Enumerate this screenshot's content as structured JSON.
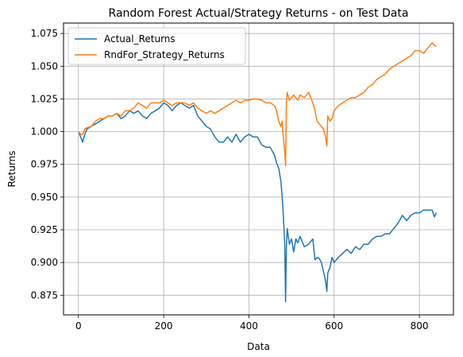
{
  "chart_data": {
    "type": "line",
    "title": "Random Forest Actual/Strategy Returns - on Test Data",
    "xlabel": "Data",
    "ylabel": "Returns",
    "xlim": [
      -35,
      880
    ],
    "ylim": [
      0.86,
      1.083
    ],
    "x_ticks": [
      0,
      200,
      400,
      600,
      800
    ],
    "y_ticks": [
      0.875,
      0.9,
      0.925,
      0.95,
      0.975,
      1.0,
      1.025,
      1.05,
      1.075
    ],
    "x_tick_labels": [
      "0",
      "200",
      "400",
      "600",
      "800"
    ],
    "y_tick_labels": [
      "0.875",
      "0.900",
      "0.925",
      "0.950",
      "0.975",
      "1.000",
      "1.025",
      "1.050",
      "1.075"
    ],
    "grid": true,
    "legend_position": "top-left",
    "series": [
      {
        "name": "Actual_Returns",
        "color": "#1f77b4",
        "x": [
          0,
          5,
          10,
          15,
          20,
          30,
          40,
          50,
          60,
          70,
          80,
          90,
          100,
          110,
          120,
          130,
          140,
          150,
          160,
          170,
          180,
          190,
          200,
          210,
          220,
          230,
          240,
          250,
          260,
          270,
          280,
          290,
          300,
          310,
          320,
          330,
          340,
          350,
          360,
          370,
          380,
          390,
          400,
          410,
          420,
          430,
          440,
          450,
          460,
          465,
          470,
          475,
          478,
          480,
          482,
          484,
          486,
          488,
          490,
          495,
          500,
          505,
          510,
          515,
          520,
          530,
          540,
          550,
          555,
          560,
          565,
          570,
          575,
          580,
          583,
          585,
          590,
          595,
          600,
          610,
          620,
          630,
          640,
          650,
          660,
          670,
          680,
          690,
          700,
          710,
          720,
          730,
          740,
          750,
          760,
          770,
          780,
          790,
          800,
          810,
          820,
          830,
          835,
          840
        ],
        "values": [
          1.0,
          0.996,
          0.992,
          0.998,
          1.002,
          1.004,
          1.006,
          1.008,
          1.01,
          1.012,
          1.012,
          1.014,
          1.01,
          1.012,
          1.016,
          1.014,
          1.016,
          1.012,
          1.01,
          1.014,
          1.016,
          1.018,
          1.022,
          1.02,
          1.016,
          1.02,
          1.022,
          1.02,
          1.018,
          1.02,
          1.012,
          1.008,
          1.004,
          1.002,
          0.996,
          0.992,
          0.992,
          0.996,
          0.992,
          0.998,
          0.992,
          0.996,
          0.998,
          0.996,
          0.996,
          0.99,
          0.988,
          0.988,
          0.982,
          0.976,
          0.972,
          0.962,
          0.95,
          0.94,
          0.928,
          0.915,
          0.87,
          0.912,
          0.926,
          0.914,
          0.918,
          0.908,
          0.918,
          0.915,
          0.92,
          0.912,
          0.914,
          0.918,
          0.902,
          0.904,
          0.903,
          0.9,
          0.893,
          0.886,
          0.878,
          0.892,
          0.896,
          0.904,
          0.9,
          0.904,
          0.907,
          0.91,
          0.907,
          0.912,
          0.91,
          0.914,
          0.914,
          0.918,
          0.92,
          0.92,
          0.922,
          0.922,
          0.926,
          0.93,
          0.936,
          0.932,
          0.936,
          0.938,
          0.938,
          0.94,
          0.94,
          0.94,
          0.935,
          0.938
        ]
      },
      {
        "name": "RndFor_Strategy_Returns",
        "color": "#ff7f0e",
        "x": [
          0,
          5,
          10,
          15,
          20,
          30,
          40,
          50,
          60,
          70,
          80,
          90,
          100,
          110,
          120,
          130,
          140,
          150,
          160,
          170,
          180,
          190,
          200,
          210,
          220,
          230,
          240,
          250,
          260,
          270,
          280,
          290,
          300,
          310,
          320,
          330,
          340,
          350,
          360,
          370,
          380,
          390,
          400,
          410,
          420,
          430,
          440,
          450,
          460,
          465,
          470,
          475,
          478,
          480,
          482,
          484,
          486,
          488,
          490,
          495,
          500,
          505,
          510,
          515,
          520,
          530,
          540,
          550,
          555,
          560,
          565,
          570,
          575,
          580,
          583,
          585,
          590,
          595,
          600,
          610,
          620,
          630,
          640,
          650,
          660,
          670,
          680,
          690,
          700,
          710,
          720,
          730,
          740,
          750,
          760,
          770,
          780,
          790,
          800,
          810,
          820,
          830,
          835,
          840
        ],
        "values": [
          1.0,
          0.998,
          0.998,
          1.002,
          1.003,
          1.004,
          1.008,
          1.01,
          1.01,
          1.012,
          1.012,
          1.014,
          1.012,
          1.016,
          1.016,
          1.018,
          1.022,
          1.02,
          1.018,
          1.022,
          1.022,
          1.022,
          1.024,
          1.022,
          1.02,
          1.022,
          1.022,
          1.022,
          1.02,
          1.022,
          1.018,
          1.016,
          1.014,
          1.016,
          1.014,
          1.016,
          1.018,
          1.02,
          1.022,
          1.024,
          1.022,
          1.024,
          1.024,
          1.025,
          1.025,
          1.024,
          1.022,
          1.022,
          1.02,
          1.016,
          1.008,
          1.004,
          1.008,
          0.998,
          0.992,
          0.985,
          0.974,
          1.022,
          1.03,
          1.024,
          1.026,
          1.028,
          1.026,
          1.024,
          1.028,
          1.026,
          1.03,
          1.022,
          1.016,
          1.008,
          1.006,
          1.004,
          1.002,
          0.996,
          0.989,
          1.012,
          1.008,
          1.01,
          1.016,
          1.02,
          1.022,
          1.024,
          1.026,
          1.026,
          1.028,
          1.03,
          1.034,
          1.036,
          1.04,
          1.042,
          1.044,
          1.048,
          1.05,
          1.052,
          1.054,
          1.056,
          1.058,
          1.062,
          1.062,
          1.06,
          1.064,
          1.068,
          1.066,
          1.065
        ]
      }
    ]
  }
}
